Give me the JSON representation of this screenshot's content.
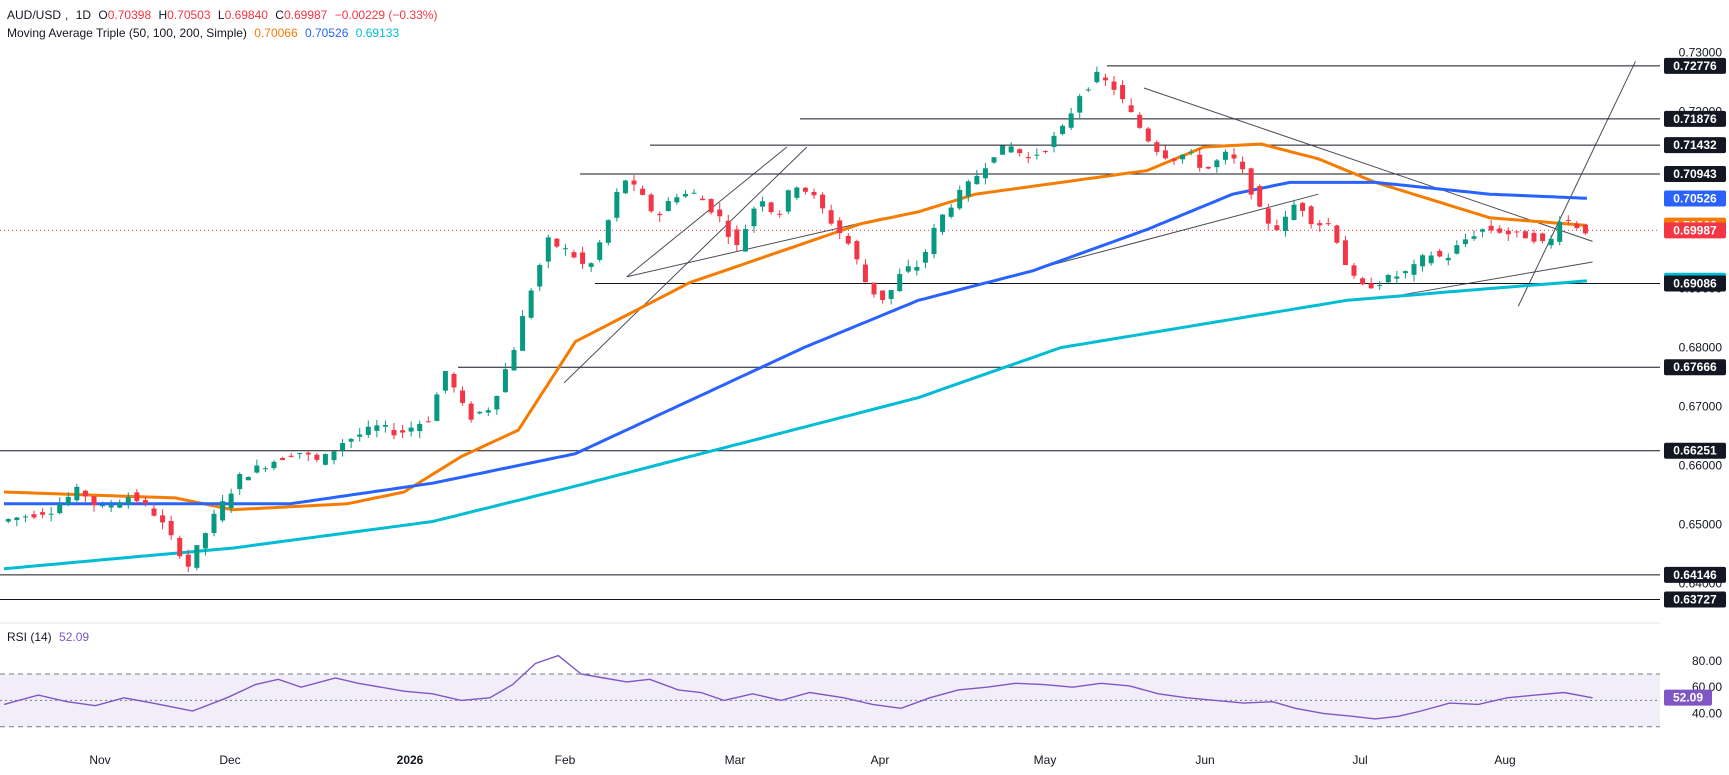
{
  "header": {
    "symbol": "AUD/USD",
    "interval": "1D",
    "open_label": "O",
    "open": "0.70398",
    "high_label": "H",
    "high": "0.70503",
    "low_label": "L",
    "low": "0.69840",
    "close_label": "C",
    "close": "0.69987",
    "change": "−0.00229 (−0.33%)"
  },
  "ma_legend": {
    "label": "Moving Average Triple (50, 100, 200, Simple)",
    "ma50": "0.70066",
    "ma100": "0.70526",
    "ma200": "0.69133"
  },
  "rsi_legend": {
    "label": "RSI (14)",
    "value": "52.09"
  },
  "colors": {
    "up": "#089981",
    "down": "#f23645",
    "ma50": "#f57c00",
    "ma100": "#2962ff",
    "ma200": "#00bcd4",
    "rsi": "#7e57c2",
    "rsi_band": "#ede7f6"
  },
  "chart_data": [
    {
      "type": "candlestick",
      "title": "AUD/USD, 1D",
      "x_ticks": [
        "Nov",
        "Dec",
        "2026",
        "Feb",
        "Mar",
        "Apr",
        "May",
        "Jun",
        "Jul",
        "Aug"
      ],
      "y_ticks": [
        "0.73000",
        "0.72000",
        "0.71000",
        "0.70000",
        "0.69000",
        "0.68000",
        "0.67000",
        "0.66000",
        "0.65000",
        "0.64000"
      ],
      "ylim": [
        0.6355,
        0.7318
      ],
      "horizontal_levels": [
        "0.72776",
        "0.71876",
        "0.71432",
        "0.70943",
        "0.69086",
        "0.67666",
        "0.66251",
        "0.64146",
        "0.63727"
      ],
      "price_labels": [
        {
          "text": "0.72776",
          "value": 0.72776,
          "bg": "#131722",
          "fg": "#ffffff"
        },
        {
          "text": "0.71876",
          "value": 0.71876,
          "bg": "#131722",
          "fg": "#ffffff"
        },
        {
          "text": "0.71432",
          "value": 0.71432,
          "bg": "#131722",
          "fg": "#ffffff"
        },
        {
          "text": "0.70943",
          "value": 0.70943,
          "bg": "#131722",
          "fg": "#ffffff"
        },
        {
          "text": "0.70526",
          "value": 0.70526,
          "bg": "#2962ff",
          "fg": "#ffffff"
        },
        {
          "text": "0.70066",
          "value": 0.70066,
          "bg": "#f57c00",
          "fg": "#ffffff"
        },
        {
          "text": "0.69987",
          "value": 0.69987,
          "bg": "#f23645",
          "fg": "#ffffff"
        },
        {
          "text": "0.69133",
          "value": 0.69133,
          "bg": "#00bcd4",
          "fg": "#131722"
        },
        {
          "text": "0.69086",
          "value": 0.69086,
          "bg": "#131722",
          "fg": "#ffffff"
        },
        {
          "text": "0.67666",
          "value": 0.67666,
          "bg": "#131722",
          "fg": "#ffffff"
        },
        {
          "text": "0.66251",
          "value": 0.66251,
          "bg": "#131722",
          "fg": "#ffffff"
        },
        {
          "text": "0.64146",
          "value": 0.64146,
          "bg": "#131722",
          "fg": "#ffffff"
        },
        {
          "text": "0.63727",
          "value": 0.63727,
          "bg": "#131722",
          "fg": "#ffffff"
        }
      ],
      "current_close": 0.69987,
      "price_path": [
        [
          0,
          0.6505
        ],
        [
          18,
          0.6525
        ],
        [
          28,
          0.656
        ],
        [
          35,
          0.6525
        ],
        [
          46,
          0.655
        ],
        [
          55,
          0.6515
        ],
        [
          66,
          0.643
        ],
        [
          74,
          0.6505
        ],
        [
          84,
          0.658
        ],
        [
          92,
          0.66
        ],
        [
          104,
          0.6625
        ],
        [
          112,
          0.6605
        ],
        [
          120,
          0.664
        ],
        [
          132,
          0.6665
        ],
        [
          140,
          0.6655
        ],
        [
          150,
          0.668
        ],
        [
          156,
          0.676
        ],
        [
          164,
          0.668
        ],
        [
          172,
          0.67
        ],
        [
          180,
          0.68
        ],
        [
          186,
          0.69
        ],
        [
          192,
          0.698
        ],
        [
          200,
          0.696
        ],
        [
          206,
          0.693
        ],
        [
          212,
          0.7
        ],
        [
          218,
          0.709
        ],
        [
          224,
          0.706
        ],
        [
          230,
          0.702
        ],
        [
          236,
          0.706
        ],
        [
          244,
          0.706
        ],
        [
          252,
          0.702
        ],
        [
          258,
          0.697
        ],
        [
          266,
          0.706
        ],
        [
          272,
          0.702
        ],
        [
          278,
          0.708
        ],
        [
          284,
          0.706
        ],
        [
          290,
          0.702
        ],
        [
          298,
          0.697
        ],
        [
          304,
          0.69
        ],
        [
          310,
          0.688
        ],
        [
          316,
          0.693
        ],
        [
          322,
          0.694
        ],
        [
          328,
          0.701
        ],
        [
          334,
          0.705
        ],
        [
          340,
          0.708
        ],
        [
          348,
          0.713
        ],
        [
          354,
          0.714
        ],
        [
          360,
          0.712
        ],
        [
          366,
          0.714
        ],
        [
          372,
          0.717
        ],
        [
          378,
          0.723
        ],
        [
          384,
          0.726
        ],
        [
          390,
          0.724
        ],
        [
          398,
          0.718
        ],
        [
          404,
          0.714
        ],
        [
          410,
          0.712
        ],
        [
          416,
          0.713
        ],
        [
          422,
          0.71
        ],
        [
          430,
          0.713
        ],
        [
          436,
          0.709
        ],
        [
          442,
          0.702
        ],
        [
          448,
          0.7
        ],
        [
          454,
          0.705
        ],
        [
          460,
          0.701
        ],
        [
          466,
          0.701
        ],
        [
          472,
          0.693
        ],
        [
          476,
          0.69
        ],
        [
          482,
          0.691
        ],
        [
          488,
          0.692
        ],
        [
          494,
          0.693
        ],
        [
          500,
          0.696
        ],
        [
          506,
          0.695
        ],
        [
          512,
          0.698
        ],
        [
          518,
          0.7
        ],
        [
          524,
          0.7
        ],
        [
          530,
          0.699
        ],
        [
          536,
          0.699
        ],
        [
          542,
          0.697
        ],
        [
          546,
          0.702
        ],
        [
          551,
          0.701
        ],
        [
          554,
          0.6999
        ]
      ],
      "ma": [
        {
          "period": 50,
          "label": "MA 50",
          "last": "0.70066",
          "path": [
            [
              0,
              0.6555
            ],
            [
              60,
              0.6545
            ],
            [
              80,
              0.6525
            ],
            [
              120,
              0.6535
            ],
            [
              140,
              0.6555
            ],
            [
              160,
              0.6615
            ],
            [
              180,
              0.666
            ],
            [
              200,
              0.681
            ],
            [
              240,
              0.691
            ],
            [
              270,
              0.696
            ],
            [
              300,
              0.701
            ],
            [
              320,
              0.703
            ],
            [
              340,
              0.706
            ],
            [
              370,
              0.708
            ],
            [
              400,
              0.71
            ],
            [
              420,
              0.714
            ],
            [
              440,
              0.7145
            ],
            [
              460,
              0.712
            ],
            [
              480,
              0.708
            ],
            [
              500,
              0.705
            ],
            [
              520,
              0.702
            ],
            [
              554,
              0.7007
            ]
          ]
        },
        {
          "period": 100,
          "label": "MA 100",
          "last": "0.70526",
          "path": [
            [
              0,
              0.6535
            ],
            [
              60,
              0.6535
            ],
            [
              100,
              0.6535
            ],
            [
              150,
              0.657
            ],
            [
              200,
              0.662
            ],
            [
              240,
              0.671
            ],
            [
              280,
              0.68
            ],
            [
              320,
              0.688
            ],
            [
              360,
              0.693
            ],
            [
              400,
              0.7
            ],
            [
              430,
              0.706
            ],
            [
              450,
              0.708
            ],
            [
              480,
              0.708
            ],
            [
              520,
              0.706
            ],
            [
              554,
              0.7053
            ]
          ]
        },
        {
          "period": 200,
          "label": "MA 200",
          "last": "0.69133",
          "path": [
            [
              0,
              0.6425
            ],
            [
              80,
              0.646
            ],
            [
              150,
              0.6505
            ],
            [
              200,
              0.6565
            ],
            [
              260,
              0.664
            ],
            [
              320,
              0.6715
            ],
            [
              370,
              0.68
            ],
            [
              420,
              0.684
            ],
            [
              470,
              0.688
            ],
            [
              520,
              0.69
            ],
            [
              554,
              0.6913
            ]
          ]
        }
      ],
      "trendlines": [
        [
          [
            196,
            0.674
          ],
          [
            281,
            0.714
          ]
        ],
        [
          [
            218,
            0.692
          ],
          [
            274,
            0.714
          ]
        ],
        [
          [
            218,
            0.692
          ],
          [
            308,
            0.702
          ]
        ],
        [
          [
            320,
            0.688
          ],
          [
            460,
            0.706
          ]
        ],
        [
          [
            399,
            0.724
          ],
          [
            556,
            0.698
          ]
        ],
        [
          [
            530,
            0.687
          ],
          [
            571,
            0.7285
          ]
        ],
        [
          [
            490,
            0.689
          ],
          [
            556,
            0.6945
          ]
        ]
      ]
    },
    {
      "type": "line",
      "title": "RSI (14)",
      "y_ticks": [
        "80.00",
        "60.00",
        "40.00"
      ],
      "ylim": [
        20,
        92
      ],
      "band": [
        30,
        70
      ],
      "midline": 50,
      "current": "52.09",
      "values": [
        [
          0,
          47
        ],
        [
          12,
          54
        ],
        [
          22,
          49
        ],
        [
          32,
          46
        ],
        [
          42,
          52
        ],
        [
          52,
          48
        ],
        [
          66,
          42
        ],
        [
          78,
          52
        ],
        [
          88,
          62
        ],
        [
          96,
          66
        ],
        [
          104,
          60
        ],
        [
          116,
          67
        ],
        [
          124,
          63
        ],
        [
          140,
          57
        ],
        [
          150,
          55
        ],
        [
          160,
          50
        ],
        [
          170,
          52
        ],
        [
          178,
          62
        ],
        [
          186,
          78
        ],
        [
          194,
          84
        ],
        [
          202,
          70
        ],
        [
          210,
          67
        ],
        [
          218,
          64
        ],
        [
          226,
          66
        ],
        [
          236,
          58
        ],
        [
          244,
          56
        ],
        [
          252,
          50
        ],
        [
          262,
          55
        ],
        [
          272,
          50
        ],
        [
          282,
          56
        ],
        [
          294,
          52
        ],
        [
          304,
          47
        ],
        [
          314,
          44
        ],
        [
          324,
          52
        ],
        [
          334,
          58
        ],
        [
          344,
          60
        ],
        [
          354,
          63
        ],
        [
          364,
          62
        ],
        [
          374,
          60
        ],
        [
          384,
          63
        ],
        [
          394,
          61
        ],
        [
          404,
          55
        ],
        [
          414,
          52
        ],
        [
          424,
          50
        ],
        [
          434,
          48
        ],
        [
          444,
          49
        ],
        [
          452,
          44
        ],
        [
          462,
          40
        ],
        [
          472,
          38
        ],
        [
          480,
          36
        ],
        [
          488,
          38
        ],
        [
          496,
          42
        ],
        [
          506,
          48
        ],
        [
          516,
          47
        ],
        [
          526,
          52
        ],
        [
          536,
          54
        ],
        [
          546,
          56
        ],
        [
          556,
          52
        ]
      ]
    }
  ],
  "x_axis": {
    "labels": [
      "Nov",
      "Dec",
      "2026",
      "Feb",
      "Mar",
      "Apr",
      "May",
      "Jun",
      "Jul",
      "Aug"
    ]
  }
}
